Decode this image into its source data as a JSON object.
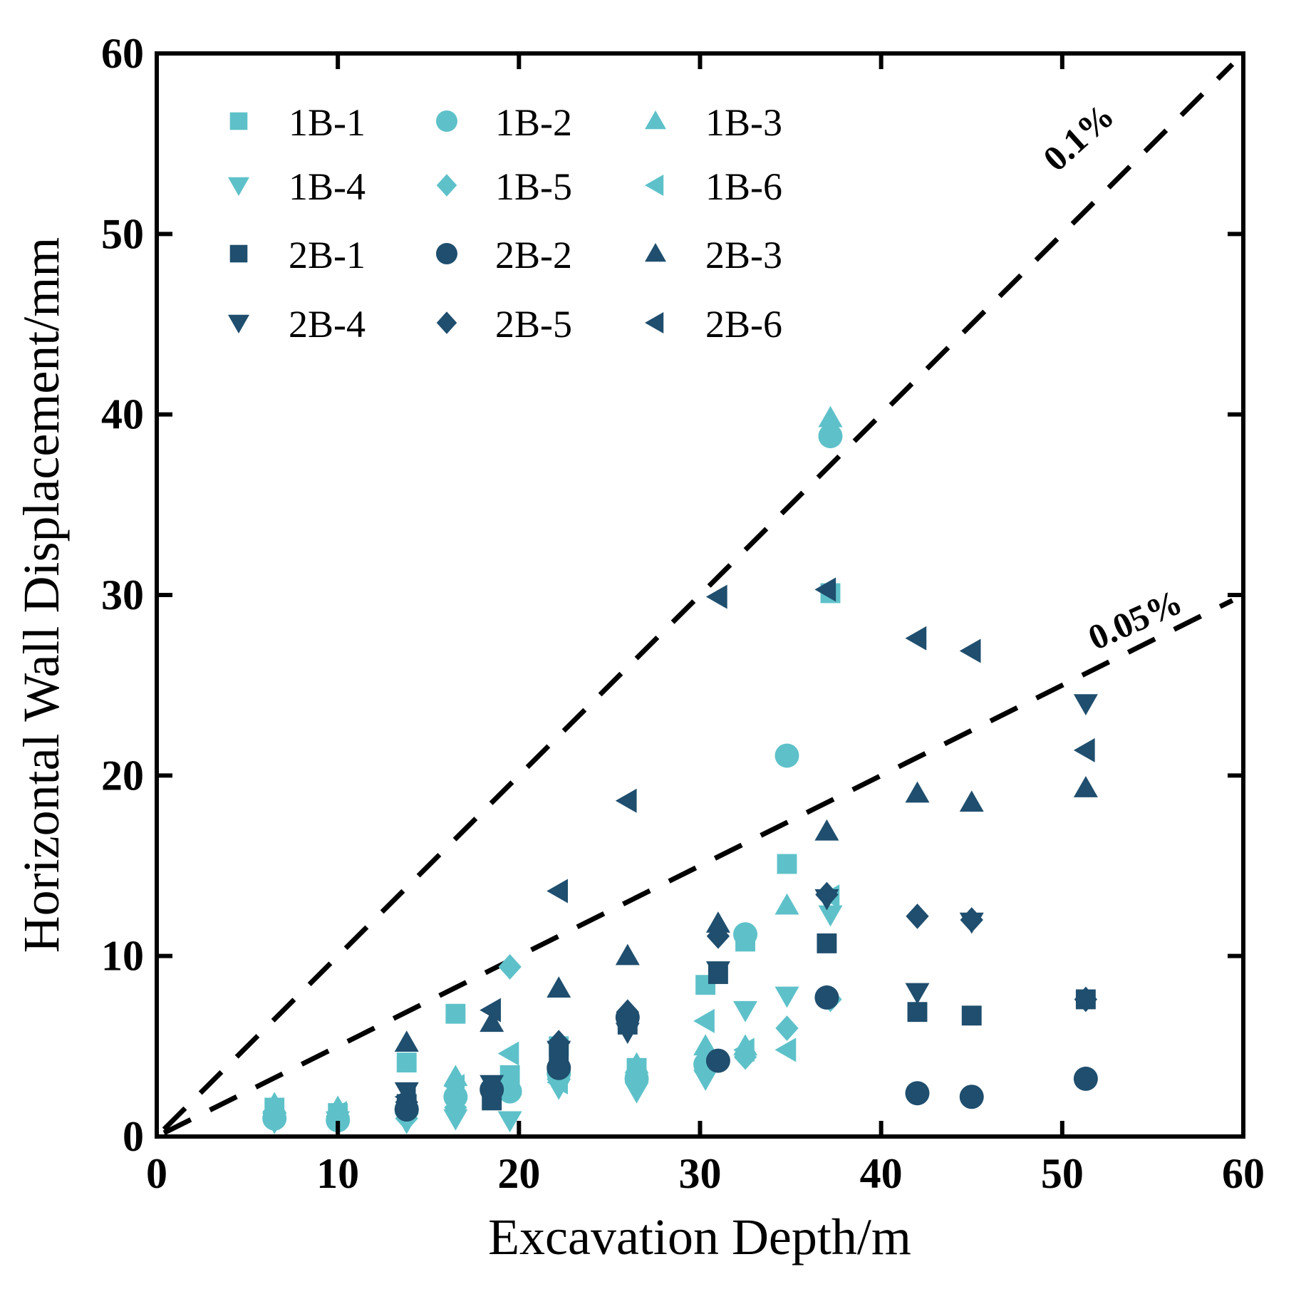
{
  "chart_data": {
    "type": "scatter",
    "xlabel": "Excavation Depth/m",
    "ylabel": "Horizontal Wall Displacement/mm",
    "xlim": [
      0,
      60
    ],
    "ylim": [
      0,
      60
    ],
    "xticks": [
      "0",
      "10",
      "20",
      "30",
      "40",
      "50",
      "60"
    ],
    "yticks": [
      "0",
      "10",
      "20",
      "30",
      "40",
      "50",
      "60"
    ],
    "legend_position": "top-left",
    "colors": {
      "group_1B": "#5ec1c9",
      "group_2B": "#1f4e6e"
    },
    "reference_lines": [
      {
        "label": "0.1%",
        "slope": 1.0
      },
      {
        "label": "0.05%",
        "slope": 0.5
      }
    ],
    "series": [
      {
        "name": "1B-1",
        "marker": "square",
        "group": "1B",
        "points": [
          [
            6.5,
            1.6
          ],
          [
            10,
            1.3
          ],
          [
            13.8,
            4.1
          ],
          [
            16.5,
            6.8
          ],
          [
            19.5,
            3.4
          ],
          [
            22.2,
            5.0
          ],
          [
            26.5,
            3.8
          ],
          [
            30.3,
            8.4
          ],
          [
            32.5,
            10.8
          ],
          [
            34.8,
            15.1
          ],
          [
            37.2,
            30.1
          ]
        ]
      },
      {
        "name": "1B-2",
        "marker": "circle",
        "group": "1B",
        "points": [
          [
            6.5,
            1.0
          ],
          [
            10,
            0.9
          ],
          [
            13.8,
            1.5
          ],
          [
            16.5,
            2.2
          ],
          [
            19.5,
            2.5
          ],
          [
            22.2,
            3.5
          ],
          [
            26.5,
            3.2
          ],
          [
            30.3,
            4.0
          ],
          [
            32.5,
            11.2
          ],
          [
            34.8,
            21.1
          ],
          [
            37.2,
            38.8
          ]
        ]
      },
      {
        "name": "1B-3",
        "marker": "triangle-up",
        "group": "1B",
        "points": [
          [
            6.5,
            1.8
          ],
          [
            10,
            1.6
          ],
          [
            13.8,
            2.0
          ],
          [
            16.5,
            3.3
          ],
          [
            19.5,
            2.8
          ],
          [
            22.2,
            4.0
          ],
          [
            26.5,
            4.0
          ],
          [
            30.3,
            5.0
          ],
          [
            32.5,
            5.0
          ],
          [
            34.8,
            12.8
          ],
          [
            37.2,
            39.8
          ]
        ]
      },
      {
        "name": "1B-4",
        "marker": "triangle-down",
        "group": "1B",
        "points": [
          [
            6.5,
            0.8
          ],
          [
            10,
            0.9
          ],
          [
            13.8,
            0.8
          ],
          [
            16.5,
            1.0
          ],
          [
            19.5,
            0.9
          ],
          [
            22.2,
            2.7
          ],
          [
            26.5,
            2.5
          ],
          [
            30.3,
            3.2
          ],
          [
            32.5,
            7.0
          ],
          [
            34.8,
            7.8
          ],
          [
            37.2,
            12.3
          ]
        ]
      },
      {
        "name": "1B-5",
        "marker": "diamond",
        "group": "1B",
        "points": [
          [
            6.5,
            1.2
          ],
          [
            10,
            1.1
          ],
          [
            13.8,
            1.0
          ],
          [
            16.5,
            1.6
          ],
          [
            19.5,
            9.4
          ],
          [
            22.2,
            3.2
          ],
          [
            26.5,
            3.0
          ],
          [
            30.3,
            3.6
          ],
          [
            32.5,
            4.4
          ],
          [
            34.8,
            6.0
          ],
          [
            37.2,
            7.6
          ]
        ]
      },
      {
        "name": "1B-6",
        "marker": "triangle-left",
        "group": "1B",
        "points": [
          [
            6.5,
            1.4
          ],
          [
            10,
            1.3
          ],
          [
            13.8,
            1.7
          ],
          [
            16.5,
            2.8
          ],
          [
            19.5,
            4.6
          ],
          [
            22.2,
            3.0
          ],
          [
            26.5,
            3.4
          ],
          [
            30.3,
            6.4
          ],
          [
            32.5,
            4.8
          ],
          [
            34.8,
            4.8
          ],
          [
            37.2,
            13.3
          ]
        ]
      },
      {
        "name": "2B-1",
        "marker": "square",
        "group": "2B",
        "points": [
          [
            13.8,
            1.8
          ],
          [
            18.5,
            2.0
          ],
          [
            22.2,
            4.6
          ],
          [
            26,
            6.2
          ],
          [
            31,
            9.0
          ],
          [
            37,
            10.7
          ],
          [
            42,
            6.9
          ],
          [
            45,
            6.7
          ],
          [
            51.3,
            7.6
          ]
        ]
      },
      {
        "name": "2B-2",
        "marker": "circle",
        "group": "2B",
        "points": [
          [
            13.8,
            1.5
          ],
          [
            18.5,
            2.6
          ],
          [
            22.2,
            3.8
          ],
          [
            26,
            6.6
          ],
          [
            31,
            4.2
          ],
          [
            37,
            7.7
          ],
          [
            42,
            2.4
          ],
          [
            45,
            2.2
          ],
          [
            51.3,
            3.2
          ]
        ]
      },
      {
        "name": "2B-3",
        "marker": "triangle-up",
        "group": "2B",
        "points": [
          [
            13.8,
            5.2
          ],
          [
            18.5,
            6.3
          ],
          [
            22.2,
            8.2
          ],
          [
            26,
            10.0
          ],
          [
            31,
            11.8
          ],
          [
            37,
            16.9
          ],
          [
            42,
            19.0
          ],
          [
            45,
            18.5
          ],
          [
            51.3,
            19.3
          ]
        ]
      },
      {
        "name": "2B-4",
        "marker": "triangle-down",
        "group": "2B",
        "points": [
          [
            13.8,
            2.5
          ],
          [
            18.5,
            2.9
          ],
          [
            22.2,
            4.8
          ],
          [
            26,
            5.8
          ],
          [
            31,
            9.2
          ],
          [
            37,
            13.2
          ],
          [
            42,
            8.0
          ],
          [
            45,
            11.9
          ],
          [
            51.3,
            24.0
          ]
        ]
      },
      {
        "name": "2B-5",
        "marker": "diamond",
        "group": "2B",
        "points": [
          [
            13.8,
            1.9
          ],
          [
            18.5,
            2.4
          ],
          [
            22.2,
            5.2
          ],
          [
            26,
            6.9
          ],
          [
            31,
            11.1
          ],
          [
            37,
            13.4
          ],
          [
            42,
            12.2
          ],
          [
            45,
            12.0
          ],
          [
            51.3,
            7.6
          ]
        ]
      },
      {
        "name": "2B-6",
        "marker": "triangle-left",
        "group": "2B",
        "points": [
          [
            13.8,
            2.2
          ],
          [
            18.5,
            7.0
          ],
          [
            22.2,
            13.6
          ],
          [
            26,
            18.6
          ],
          [
            31,
            29.9
          ],
          [
            37,
            30.3
          ],
          [
            42,
            27.6
          ],
          [
            45,
            26.9
          ],
          [
            51.3,
            21.4
          ]
        ]
      }
    ]
  }
}
